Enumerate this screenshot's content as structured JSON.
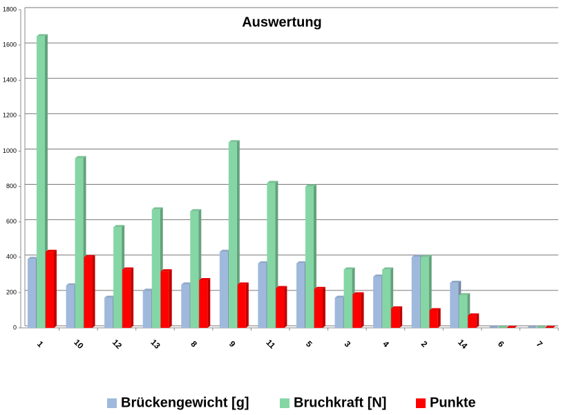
{
  "chart_data": {
    "type": "bar",
    "title": "Auswertung",
    "categories": [
      "1",
      "10",
      "12",
      "13",
      "8",
      "9",
      "11",
      "5",
      "3",
      "4",
      "2",
      "14",
      "6",
      "7"
    ],
    "series": [
      {
        "name": "Brückengewicht [g]",
        "color": "#9fb9dd",
        "values": [
          390,
          240,
          170,
          210,
          245,
          430,
          365,
          365,
          170,
          290,
          400,
          255,
          0,
          0
        ]
      },
      {
        "name": "Bruchkraft [N]",
        "color": "#85d6a5",
        "values": [
          1650,
          960,
          570,
          670,
          660,
          1050,
          820,
          800,
          330,
          330,
          400,
          185,
          0,
          0
        ]
      },
      {
        "name": "Punkte",
        "color": "#ff0000",
        "values": [
          430,
          400,
          330,
          320,
          270,
          245,
          225,
          220,
          190,
          110,
          100,
          70,
          0,
          0
        ]
      }
    ],
    "ylim": [
      0,
      1800
    ],
    "yticks": [
      0,
      200,
      400,
      600,
      800,
      1000,
      1200,
      1400,
      1600,
      1800
    ],
    "grid": true,
    "legend": "bottom"
  }
}
